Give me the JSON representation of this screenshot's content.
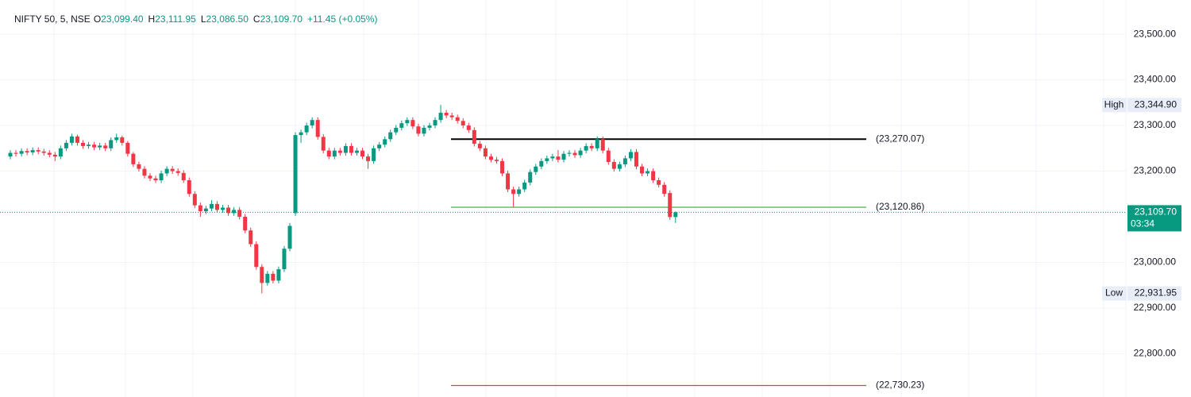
{
  "chart_data": {
    "type": "candlestick",
    "header": {
      "symbol": "NIFTY 50, 5, NSE",
      "ohlc": [
        {
          "key": "O",
          "value": "23,099.40"
        },
        {
          "key": "H",
          "value": "23,111.95"
        },
        {
          "key": "L",
          "value": "23,086.50"
        },
        {
          "key": "C",
          "value": "23,109.70"
        }
      ],
      "change": "+11.45 (+0.05%)"
    },
    "up_color": "#089981",
    "down_color": "#f23645",
    "grid": true,
    "ylim": [
      22705,
      23575
    ],
    "yticks": [
      {
        "value": 22800,
        "label": "22,800.00"
      },
      {
        "value": 22900,
        "label": "22,900.00"
      },
      {
        "value": 23000,
        "label": "23,000.00"
      },
      {
        "value": 23200,
        "label": "23,200.00"
      },
      {
        "value": 23300,
        "label": "23,300.00"
      },
      {
        "value": 23400,
        "label": "23,400.00"
      },
      {
        "value": 23500,
        "label": "23,500.00"
      }
    ],
    "open": [
      23232,
      23240,
      23238,
      23244,
      23241,
      23246,
      23243,
      23240,
      23236,
      23232,
      23250,
      23262,
      23276,
      23262,
      23255,
      23258,
      23252,
      23256,
      23250,
      23268,
      23274,
      23262,
      23238,
      23215,
      23205,
      23190,
      23184,
      23180,
      23195,
      23205,
      23200,
      23196,
      23180,
      23150,
      23125,
      23112,
      23118,
      23128,
      23115,
      23120,
      23108,
      23115,
      23100,
      23070,
      23040,
      22990,
      22955,
      22975,
      22960,
      22985,
      23030,
      23108,
      23279,
      23285,
      23300,
      23312,
      23275,
      23245,
      23232,
      23245,
      23240,
      23255,
      23240,
      23245,
      23232,
      23222,
      23250,
      23258,
      23270,
      23285,
      23295,
      23305,
      23312,
      23298,
      23282,
      23295,
      23300,
      23312,
      23328,
      23322,
      23318,
      23310,
      23300,
      23290,
      23260,
      23250,
      23232,
      23225,
      23222,
      23195,
      23160,
      23150,
      23160,
      23175,
      23198,
      23210,
      23222,
      23228,
      23232,
      23225,
      23238,
      23240,
      23235,
      23245,
      23255,
      23250,
      23270,
      23245,
      23220,
      23205,
      23215,
      23228,
      23242,
      23210,
      23195,
      23200,
      23180,
      23170,
      23152,
      23099.4
    ],
    "high": [
      23246,
      23246,
      23250,
      23250,
      23252,
      23252,
      23249,
      23246,
      23242,
      23256,
      23268,
      23282,
      23280,
      23268,
      23264,
      23264,
      23262,
      23262,
      23274,
      23282,
      23278,
      23266,
      23242,
      23221,
      23211,
      23196,
      23190,
      23201,
      23211,
      23211,
      23206,
      23202,
      23186,
      23156,
      23131,
      23124,
      23136,
      23134,
      23126,
      23126,
      23121,
      23121,
      23106,
      23076,
      23046,
      22996,
      22981,
      22981,
      22991,
      23036,
      23086,
      23285,
      23291,
      23306,
      23318,
      23318,
      23281,
      23251,
      23251,
      23251,
      23261,
      23261,
      23251,
      23251,
      23238,
      23256,
      23264,
      23276,
      23291,
      23301,
      23311,
      23318,
      23318,
      23304,
      23301,
      23306,
      23318,
      23344.9,
      23334,
      23328,
      23324,
      23316,
      23306,
      23296,
      23266,
      23256,
      23238,
      23231,
      23228,
      23201,
      23166,
      23166,
      23181,
      23204,
      23216,
      23228,
      23234,
      23238,
      23246,
      23244,
      23246,
      23246,
      23251,
      23261,
      23261,
      23276,
      23276,
      23251,
      23226,
      23221,
      23234,
      23248,
      23248,
      23216,
      23206,
      23206,
      23186,
      23176,
      23158,
      23111.95
    ],
    "low": [
      23226,
      23232,
      23232,
      23235,
      23235,
      23237,
      23234,
      23230,
      23222,
      23226,
      23244,
      23256,
      23256,
      23249,
      23249,
      23246,
      23246,
      23244,
      23244,
      23262,
      23256,
      23232,
      23209,
      23199,
      23184,
      23178,
      23174,
      23174,
      23189,
      23194,
      23190,
      23174,
      23144,
      23119,
      23100,
      23106,
      23112,
      23109,
      23109,
      23102,
      23102,
      23094,
      23064,
      23034,
      22984,
      22932,
      22949,
      22954,
      22954,
      22979,
      23024,
      23102,
      23262,
      23279,
      23294,
      23269,
      23239,
      23226,
      23226,
      23234,
      23234,
      23234,
      23234,
      23226,
      23205,
      23216,
      23244,
      23252,
      23264,
      23279,
      23289,
      23299,
      23292,
      23276,
      23276,
      23289,
      23294,
      23306,
      23316,
      23312,
      23304,
      23294,
      23284,
      23254,
      23244,
      23226,
      23219,
      23216,
      23189,
      23154,
      23121,
      23144,
      23154,
      23169,
      23192,
      23204,
      23216,
      23222,
      23219,
      23219,
      23232,
      23229,
      23229,
      23239,
      23244,
      23244,
      23239,
      23214,
      23199,
      23199,
      23209,
      23222,
      23204,
      23189,
      23189,
      23174,
      23164,
      23144,
      23093,
      23086.5
    ],
    "close": [
      23240,
      23238,
      23244,
      23241,
      23246,
      23243,
      23240,
      23236,
      23232,
      23250,
      23262,
      23276,
      23262,
      23255,
      23258,
      23252,
      23256,
      23250,
      23268,
      23274,
      23262,
      23238,
      23215,
      23205,
      23190,
      23184,
      23180,
      23195,
      23205,
      23200,
      23196,
      23180,
      23150,
      23125,
      23112,
      23118,
      23128,
      23115,
      23120,
      23108,
      23115,
      23100,
      23070,
      23040,
      22990,
      22955,
      22975,
      22960,
      22985,
      23030,
      23080,
      23279,
      23285,
      23300,
      23312,
      23275,
      23245,
      23232,
      23245,
      23240,
      23255,
      23240,
      23245,
      23232,
      23222,
      23250,
      23258,
      23270,
      23285,
      23295,
      23305,
      23312,
      23298,
      23282,
      23295,
      23300,
      23312,
      23328,
      23322,
      23318,
      23310,
      23300,
      23290,
      23260,
      23250,
      23232,
      23225,
      23222,
      23195,
      23160,
      23150,
      23160,
      23175,
      23198,
      23210,
      23222,
      23228,
      23232,
      23225,
      23238,
      23240,
      23235,
      23245,
      23255,
      23250,
      23270,
      23245,
      23220,
      23205,
      23215,
      23228,
      23242,
      23210,
      23195,
      23200,
      23180,
      23170,
      23150,
      23099.4,
      23109.7
    ],
    "levels": [
      {
        "value": 23270.07,
        "label": "(23,270.07)",
        "color": "#000000"
      },
      {
        "value": 23120.86,
        "label": "(23,120.86)",
        "color": "#4caf50"
      },
      {
        "value": 22730.23,
        "label": "(22,730.23)",
        "color": "#f23645"
      }
    ],
    "high_marker": {
      "label": "High",
      "value": 23344.9,
      "value_label": "23,344.90"
    },
    "low_marker": {
      "label": "Low",
      "value": 22931.95,
      "value_label": "22,931.95"
    },
    "last_price": {
      "value": 23109.7,
      "value_label": "23,109.70",
      "countdown": "03:34"
    }
  }
}
